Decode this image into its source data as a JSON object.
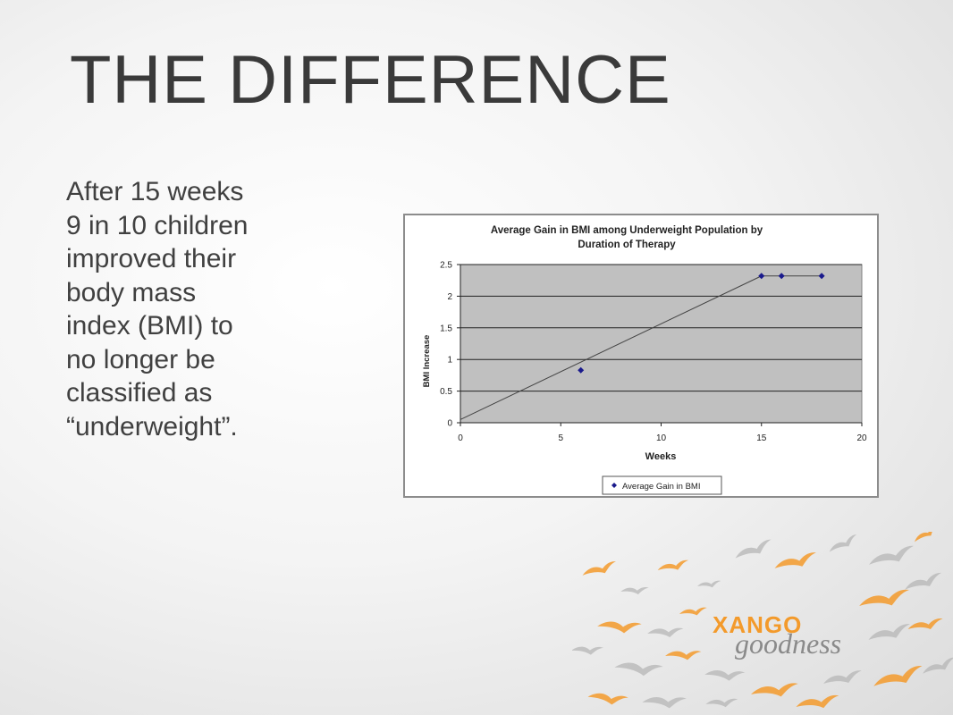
{
  "slide": {
    "title": "THE DIFFERENCE",
    "body_lines": [
      "After 15 weeks",
      "9 in 10 children",
      "improved their",
      "body mass",
      "index (BMI) to",
      "no longer be",
      "classified as",
      "“underweight”."
    ]
  },
  "chart_data": {
    "type": "line",
    "title": "Average Gain in BMI among Underweight Population by Duration of Therapy",
    "title_lines": [
      "Average Gain in BMI among Underweight Population by",
      "Duration of Therapy"
    ],
    "xlabel": "Weeks",
    "ylabel": "BMI Increase",
    "xlim": [
      0,
      20
    ],
    "ylim": [
      0,
      2.5
    ],
    "xticks": [
      0,
      5,
      10,
      15,
      20
    ],
    "yticks": [
      0,
      0.5,
      1,
      1.5,
      2,
      2.5
    ],
    "grid": "horizontal",
    "legend_position": "bottom",
    "series": [
      {
        "name": "Average Gain in BMI",
        "color": "#1a1a8c",
        "points": [
          {
            "x": 6,
            "y": 0.83
          },
          {
            "x": 15,
            "y": 2.32
          },
          {
            "x": 16,
            "y": 2.32
          },
          {
            "x": 18,
            "y": 2.32
          }
        ]
      }
    ],
    "trendline": {
      "points": [
        {
          "x": 0,
          "y": 0.05
        },
        {
          "x": 15,
          "y": 2.32
        }
      ],
      "color": "#444444"
    },
    "plot_area_color": "#c0c0c0"
  },
  "brand": {
    "name": "XANGO",
    "tagline": "goodness",
    "colors": {
      "orange": "#f39a2b",
      "gray": "#b5b5b5"
    }
  }
}
